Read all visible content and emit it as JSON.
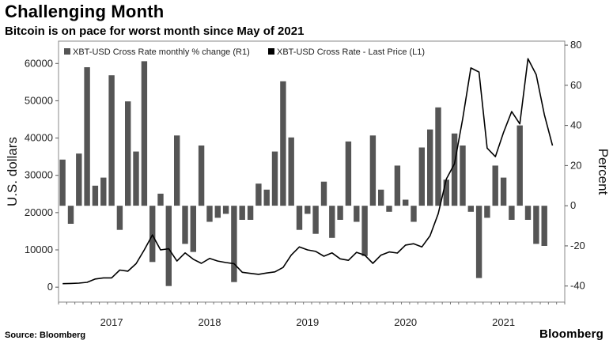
{
  "header": {
    "title": "Challenging Month",
    "subtitle": "Bitcoin is on pace for worst month since May of 2021"
  },
  "footer": {
    "source": "Source: Bloomberg",
    "brand": "Bloomberg"
  },
  "chart_data": {
    "type": "bar",
    "legend": [
      {
        "label": "XBT-USD Cross Rate monthly % change (R1)",
        "color": "#555555"
      },
      {
        "label": "XBT-USD Cross Rate - Last Price (L1)",
        "color": "#000000"
      }
    ],
    "ylabel_left": "U.S. dollars",
    "ylabel_right": "Percent",
    "ylim_left": [
      -4000,
      66000
    ],
    "ylim_right": [
      -48,
      82
    ],
    "yticks_left": [
      0,
      10000,
      20000,
      30000,
      40000,
      50000,
      60000
    ],
    "yticks_left_labels": [
      "0",
      "10000",
      "20000",
      "30000",
      "40000",
      "50000",
      "60000"
    ],
    "yticks_right": [
      -40,
      -20,
      0,
      20,
      40,
      60,
      80
    ],
    "yticks_right_labels": [
      "-40",
      "-20",
      "0",
      "20",
      "40",
      "60",
      "80"
    ],
    "year_labels": [
      "2017",
      "2018",
      "2019",
      "2020",
      "2021"
    ],
    "year_months": [
      6,
      18,
      30,
      42,
      54
    ],
    "month_count": 62,
    "grid": false,
    "legend_position": "top-left",
    "series": [
      {
        "name": "XBT-USD Cross Rate monthly % change (R1)",
        "type": "bar",
        "axis": "right",
        "values": [
          23,
          -9,
          26,
          69,
          10,
          14,
          65,
          -12,
          52,
          27,
          72,
          -28,
          6,
          -40,
          35,
          -19,
          -23,
          30,
          -8,
          -6,
          -4,
          -38,
          -7,
          -7,
          11,
          8,
          27,
          62,
          34,
          -12,
          -4,
          -14,
          12,
          -16,
          -7,
          32,
          -8,
          -25,
          35,
          8,
          -3,
          20,
          3,
          -8,
          29,
          38,
          49,
          13,
          36,
          30,
          -3,
          -36,
          -6,
          20,
          14,
          -7,
          40,
          -7,
          -19,
          -20
        ],
        "value_unit": "percent"
      },
      {
        "name": "XBT-USD Cross Rate - Last Price (L1)",
        "type": "line",
        "axis": "left",
        "values": [
          950,
          1000,
          1100,
          1300,
          2200,
          2500,
          2500,
          4600,
          4300,
          6300,
          10000,
          14000,
          10000,
          10300,
          7000,
          9200,
          7500,
          6400,
          7700,
          7000,
          6600,
          6300,
          4000,
          3700,
          3450,
          3800,
          4100,
          5300,
          8600,
          10800,
          10000,
          9600,
          8300,
          9200,
          7600,
          7200,
          9350,
          8600,
          6400,
          8600,
          9450,
          9150,
          11300,
          11650,
          10800,
          13800,
          19700,
          29000,
          33100,
          45200,
          58800,
          57700,
          37300,
          35000,
          41500,
          47100,
          43800,
          61300,
          57000,
          46300,
          38000
        ],
        "value_unit": "USD"
      }
    ]
  }
}
